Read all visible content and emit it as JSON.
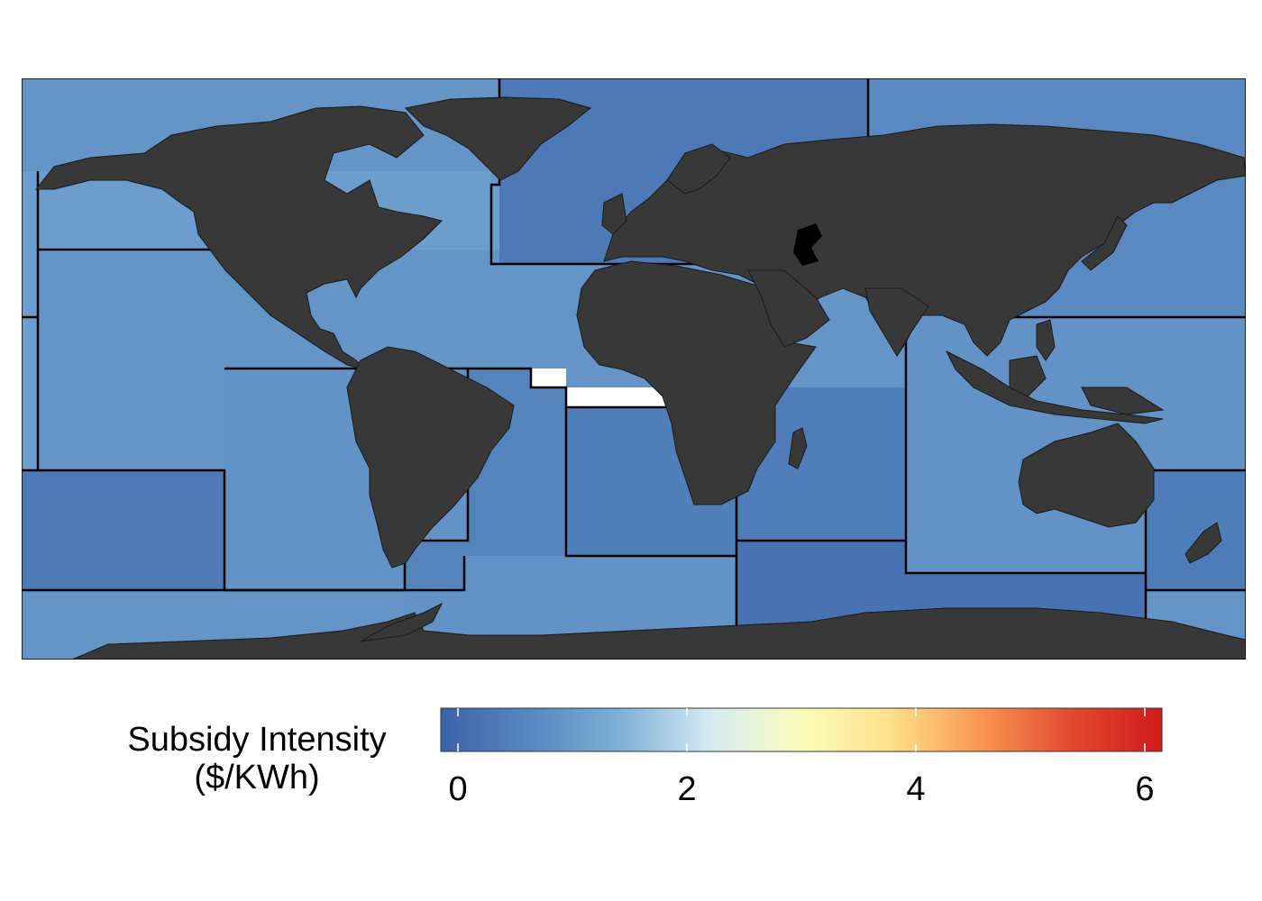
{
  "legend": {
    "title_line1": "Subsidy Intensity",
    "title_line2": "($/KWh)",
    "min": -0.15,
    "max": 6.15,
    "ticks": [
      {
        "value": 0,
        "label": "0"
      },
      {
        "value": 2,
        "label": "2"
      },
      {
        "value": 4,
        "label": "4"
      },
      {
        "value": 6,
        "label": "6"
      }
    ],
    "colors": [
      "#3b63a8",
      "#5888c0",
      "#7fb0d6",
      "#d5ebf3",
      "#fbfdba",
      "#fee08a",
      "#f99552",
      "#e2492f",
      "#cf1b1c"
    ]
  },
  "map": {
    "land_color": "#383838",
    "highlight_color": "#000000",
    "regions": [
      {
        "name": "north-pacific",
        "value": 0.9
      },
      {
        "name": "northwest-atlantic",
        "value": 1.0
      },
      {
        "name": "northeast-atlantic",
        "value": 0.35
      },
      {
        "name": "arctic-east",
        "value": 0.65
      },
      {
        "name": "north-pacific-west",
        "value": 0.85
      },
      {
        "name": "mid-atlantic",
        "value": 1.05
      },
      {
        "name": "mediterranean-central-atlantic",
        "value": 0.9
      },
      {
        "name": "east-central-pacific",
        "value": 0.9
      },
      {
        "name": "southwest-atlantic",
        "value": 0.55
      },
      {
        "name": "southeast-atlantic",
        "value": 0.45
      },
      {
        "name": "western-indian-ocean",
        "value": 0.4
      },
      {
        "name": "southeast-pacific",
        "value": 0.35
      },
      {
        "name": "western-central-pacific",
        "value": 0.85
      },
      {
        "name": "eastern-indian-ocean",
        "value": 0.85
      },
      {
        "name": "southwest-pacific",
        "value": 0.4
      },
      {
        "name": "antarctic-indian",
        "value": 0.2
      },
      {
        "name": "antarctic-atlantic",
        "value": 0.85
      },
      {
        "name": "antarctic-pacific",
        "value": 0.9
      }
    ]
  }
}
